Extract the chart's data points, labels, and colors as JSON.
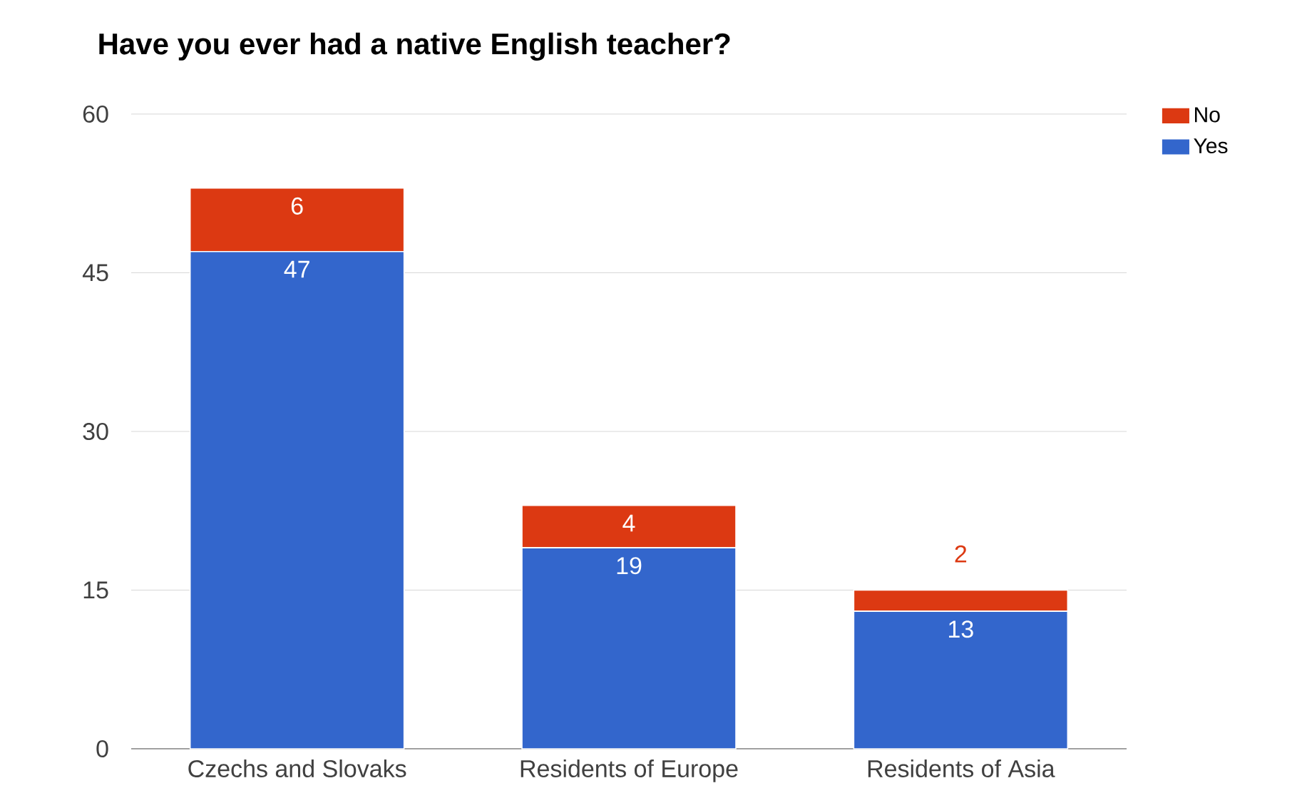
{
  "chart_data": {
    "type": "bar",
    "title": "Have you ever had a native English teacher?",
    "categories": [
      "Czechs and Slovaks",
      "Residents of Europe",
      "Residents of Asia"
    ],
    "series": [
      {
        "name": "Yes",
        "color": "#3366cc",
        "values": [
          47,
          19,
          13
        ]
      },
      {
        "name": "No",
        "color": "#dc3912",
        "values": [
          6,
          4,
          2
        ]
      }
    ],
    "stacked": true,
    "ylim": [
      0,
      60
    ],
    "yticks": [
      0,
      15,
      30,
      45,
      60
    ],
    "grid": "y",
    "legend": "top right",
    "data_labels": true
  }
}
